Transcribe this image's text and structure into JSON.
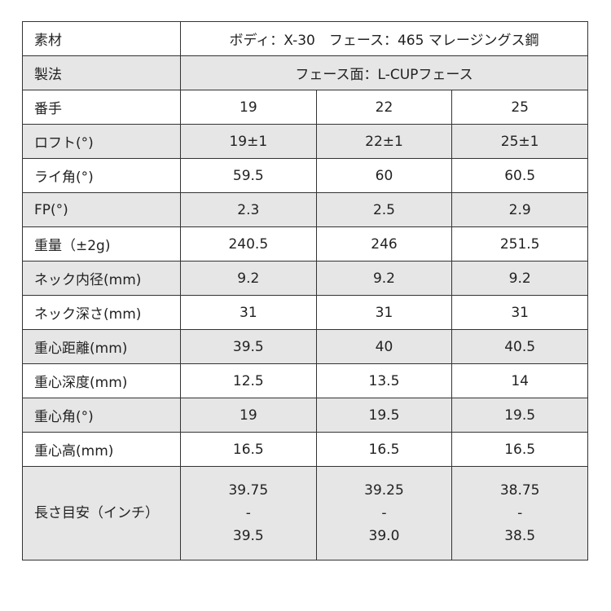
{
  "rows": [
    {
      "label": "素材",
      "span": "ボディ：X-30　フェース：465 マレージングス鋼"
    },
    {
      "label": "製法",
      "span": "フェース面：L-CUPフェース"
    },
    {
      "label": "番手",
      "values": [
        "19",
        "22",
        "25"
      ]
    },
    {
      "label": "ロフト(°)",
      "values": [
        "19±1",
        "22±1",
        "25±1"
      ]
    },
    {
      "label": "ライ角(°)",
      "values": [
        "59.5",
        "60",
        "60.5"
      ]
    },
    {
      "label": "FP(°)",
      "values": [
        "2.3",
        "2.5",
        "2.9"
      ]
    },
    {
      "label": "重量（±2g)",
      "values": [
        "240.5",
        "246",
        "251.5"
      ]
    },
    {
      "label": "ネック内径(mm)",
      "values": [
        "9.2",
        "9.2",
        "9.2"
      ]
    },
    {
      "label": "ネック深さ(mm)",
      "values": [
        "31",
        "31",
        "31"
      ]
    },
    {
      "label": "重心距離(mm)",
      "values": [
        "39.5",
        "40",
        "40.5"
      ]
    },
    {
      "label": "重心深度(mm)",
      "values": [
        "12.5",
        "13.5",
        "14"
      ]
    },
    {
      "label": "重心角(°)",
      "values": [
        "19",
        "19.5",
        "19.5"
      ]
    },
    {
      "label": "重心高(mm)",
      "values": [
        "16.5",
        "16.5",
        "16.5"
      ]
    },
    {
      "label": "長さ目安（インチ）",
      "values": [
        [
          "39.75",
          "-",
          "39.5"
        ],
        [
          "39.25",
          "-",
          "39.0"
        ],
        [
          "38.75",
          "-",
          "38.5"
        ]
      ]
    }
  ]
}
